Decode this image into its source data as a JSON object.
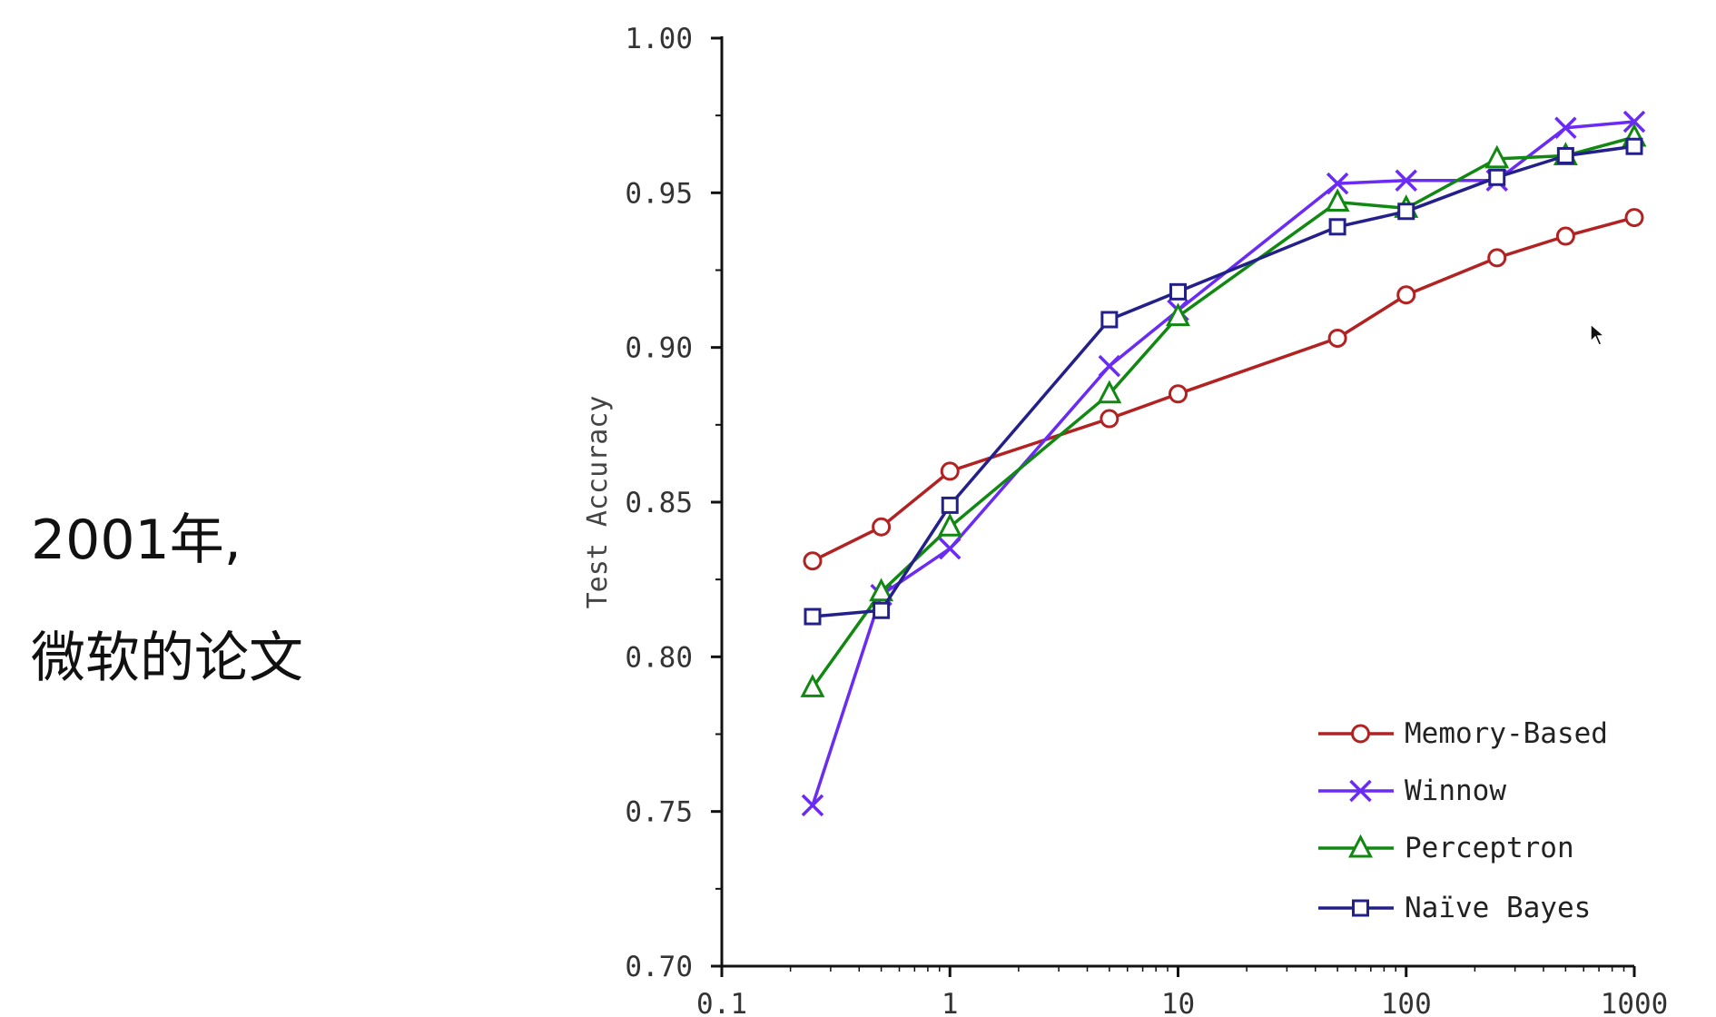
{
  "slide": {
    "line1": "2001年,",
    "line2": "微软的论文"
  },
  "chart_data": {
    "type": "line",
    "title": "",
    "xlabel": "",
    "ylabel": "Test Accuracy",
    "xscale": "log",
    "xlim": [
      0.1,
      1000
    ],
    "ylim": [
      0.7,
      1.0
    ],
    "x_ticks": [
      0.1,
      1,
      10,
      100,
      1000
    ],
    "x_tick_labels": [
      "0.1",
      "1",
      "10",
      "100",
      "1000"
    ],
    "y_ticks": [
      0.7,
      0.75,
      0.8,
      0.85,
      0.9,
      0.95,
      1.0
    ],
    "y_tick_labels": [
      "0.70",
      "0.75",
      "0.80",
      "0.85",
      "0.90",
      "0.95",
      "1.00"
    ],
    "grid": false,
    "legend_position": "bottom-right",
    "series": [
      {
        "name": "Memory-Based",
        "color": "#b22222",
        "marker": "circle",
        "x": [
          0.25,
          0.5,
          1,
          5,
          10,
          50,
          100,
          250,
          500,
          1000
        ],
        "y": [
          0.831,
          0.842,
          0.86,
          0.877,
          0.885,
          0.903,
          0.917,
          0.929,
          0.936,
          0.942
        ]
      },
      {
        "name": "Winnow",
        "color": "#6a2bf5",
        "marker": "x",
        "x": [
          0.25,
          0.5,
          1,
          5,
          10,
          50,
          100,
          250,
          500,
          1000
        ],
        "y": [
          0.752,
          0.82,
          0.835,
          0.894,
          0.912,
          0.953,
          0.954,
          0.954,
          0.971,
          0.973
        ]
      },
      {
        "name": "Perceptron",
        "color": "#118811",
        "marker": "triangle",
        "x": [
          0.25,
          0.5,
          1,
          5,
          10,
          50,
          100,
          250,
          500,
          1000
        ],
        "y": [
          0.79,
          0.821,
          0.842,
          0.885,
          0.91,
          0.947,
          0.945,
          0.961,
          0.962,
          0.968
        ]
      },
      {
        "name": "Naïve Bayes",
        "color": "#24208a",
        "marker": "square",
        "x": [
          0.25,
          0.5,
          1,
          5,
          10,
          50,
          100,
          250,
          500,
          1000
        ],
        "y": [
          0.813,
          0.815,
          0.849,
          0.909,
          0.918,
          0.939,
          0.944,
          0.955,
          0.962,
          0.965
        ]
      }
    ]
  }
}
